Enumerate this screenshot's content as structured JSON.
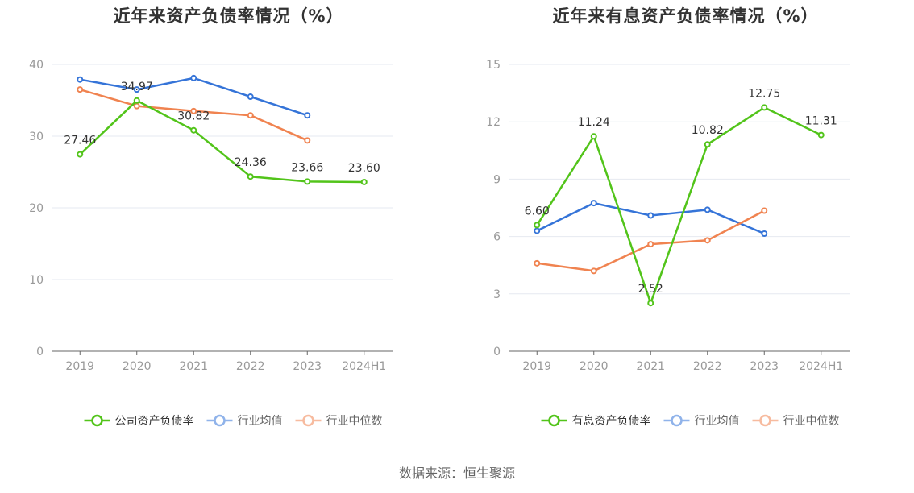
{
  "chart_data": [
    {
      "type": "line",
      "title": "近年来资产负债率情况（%）",
      "categories": [
        "2019",
        "2020",
        "2021",
        "2022",
        "2023",
        "2024H1"
      ],
      "ylim": [
        0,
        40
      ],
      "yticks": [
        0,
        10,
        20,
        30,
        40
      ],
      "grid": true,
      "legend_position": "bottom",
      "series": [
        {
          "name": "公司资产负债率",
          "color": "#52c41a",
          "values": [
            27.46,
            34.97,
            30.82,
            24.36,
            23.66,
            23.6
          ],
          "labels": [
            "27.46",
            "34.97",
            "30.82",
            "24.36",
            "23.66",
            "23.60"
          ],
          "primary": true
        },
        {
          "name": "行业均值",
          "color": "#3574d8",
          "values": [
            37.9,
            36.5,
            38.1,
            35.5,
            32.9,
            null
          ]
        },
        {
          "name": "行业中位数",
          "color": "#f08350",
          "values": [
            36.5,
            34.2,
            33.5,
            32.9,
            29.4,
            null
          ]
        }
      ]
    },
    {
      "type": "line",
      "title": "近年来有息资产负债率情况（%）",
      "categories": [
        "2019",
        "2020",
        "2021",
        "2022",
        "2023",
        "2024H1"
      ],
      "ylim": [
        0,
        15
      ],
      "yticks": [
        0,
        3,
        6,
        9,
        12,
        15
      ],
      "grid": true,
      "legend_position": "bottom",
      "series": [
        {
          "name": "有息资产负债率",
          "color": "#52c41a",
          "values": [
            6.6,
            11.24,
            2.52,
            10.82,
            12.75,
            11.31
          ],
          "labels": [
            "6.60",
            "11.24",
            "2.52",
            "10.82",
            "12.75",
            "11.31"
          ],
          "primary": true
        },
        {
          "name": "行业均值",
          "color": "#3574d8",
          "values": [
            6.3,
            7.75,
            7.1,
            7.4,
            6.15,
            null
          ]
        },
        {
          "name": "行业中位数",
          "color": "#f08350",
          "values": [
            4.6,
            4.2,
            5.6,
            5.8,
            7.35,
            null
          ]
        }
      ]
    }
  ],
  "source": "数据来源：恒生聚源"
}
